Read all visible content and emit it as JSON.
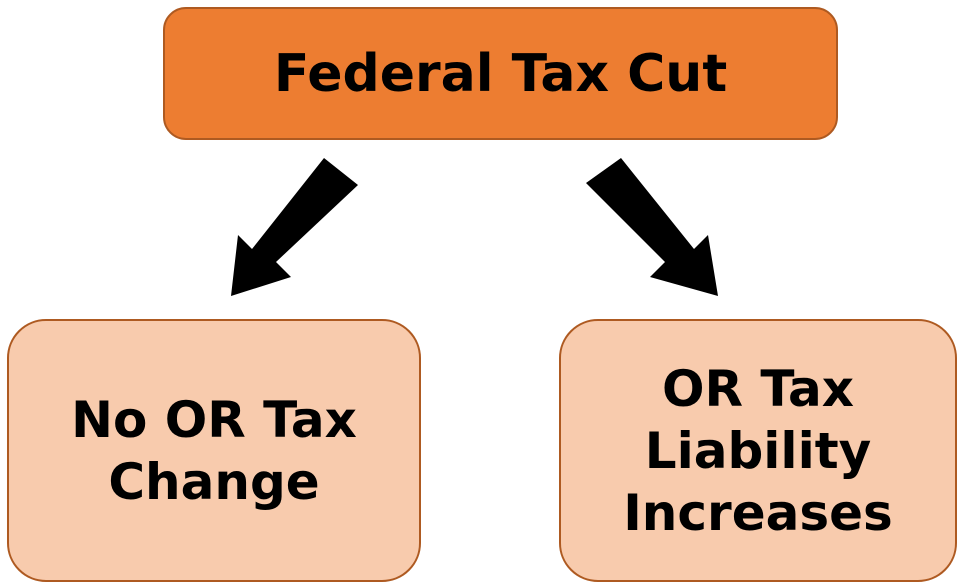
{
  "nodes": [
    {
      "label": "Federal Tax Cut"
    },
    {
      "label": "No OR Tax Change"
    },
    {
      "label": "OR Tax Liability Increases"
    }
  ]
}
